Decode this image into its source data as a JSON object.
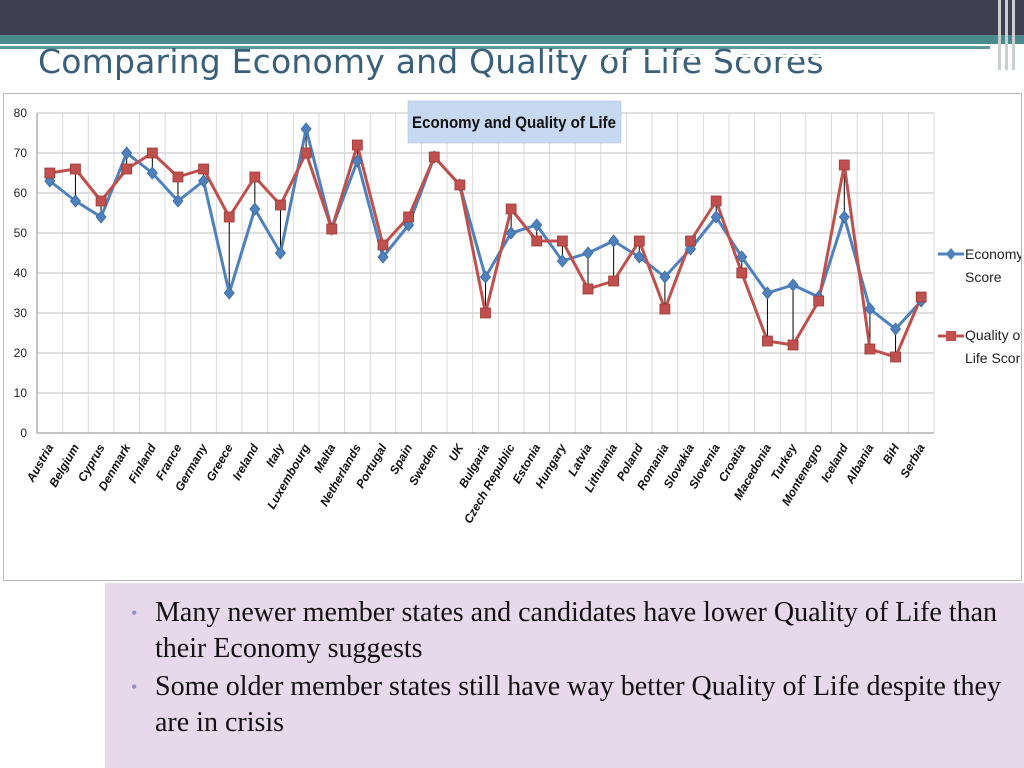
{
  "slide": {
    "title": "Comparing Economy and Quality of Life Scores",
    "bullets": [
      "Many newer member states and candidates have lower Quality of Life than their Economy suggests",
      "Some older member states still have way better Quality of Life despite they are in crisis"
    ],
    "colors": {
      "top_bar": "#3f3f52",
      "accent_bar": "#4b8a8a",
      "title": "#3a5f7a",
      "bullet_panel": "#e7d8ec",
      "bullet_marker": "#8f8fc4"
    }
  },
  "chart_data": {
    "type": "line",
    "title": "Economy and Quality of Life",
    "xlabel": "",
    "ylabel": "",
    "ylim": [
      0,
      80
    ],
    "yticks": [
      0,
      10,
      20,
      30,
      40,
      50,
      60,
      70,
      80
    ],
    "grid": true,
    "legend_position": "right",
    "categories": [
      "Austria",
      "Belgium",
      "Cyprus",
      "Denmark",
      "Finland",
      "France",
      "Germany",
      "Greece",
      "Ireland",
      "Italy",
      "Luxembourg",
      "Malta",
      "Netherlands",
      "Portugal",
      "Spain",
      "Sweden",
      "UK",
      "Bulgaria",
      "Czech Republic",
      "Estonia",
      "Hungary",
      "Latvia",
      "Lithuania",
      "Poland",
      "Romania",
      "Slovakia",
      "Slovenia",
      "Croatia",
      "Macedonia",
      "Turkey",
      "Montenegro",
      "Iceland",
      "Albania",
      "BiH",
      "Serbia"
    ],
    "series": [
      {
        "name": "Economy Score",
        "color": "#4f81bd",
        "marker": "diamond",
        "values": [
          63,
          58,
          54,
          70,
          65,
          58,
          63,
          35,
          56,
          45,
          76,
          51,
          68,
          44,
          52,
          69,
          62,
          39,
          50,
          52,
          43,
          45,
          48,
          44,
          39,
          46,
          54,
          44,
          35,
          37,
          34,
          54,
          31,
          26,
          33
        ]
      },
      {
        "name": "Quality of Life Score",
        "color": "#c0504d",
        "marker": "square",
        "values": [
          65,
          66,
          58,
          66,
          70,
          64,
          66,
          54,
          64,
          57,
          70,
          51,
          72,
          47,
          54,
          69,
          62,
          30,
          56,
          48,
          48,
          36,
          38,
          48,
          31,
          48,
          58,
          40,
          23,
          22,
          33,
          67,
          21,
          19,
          34
        ]
      }
    ]
  }
}
